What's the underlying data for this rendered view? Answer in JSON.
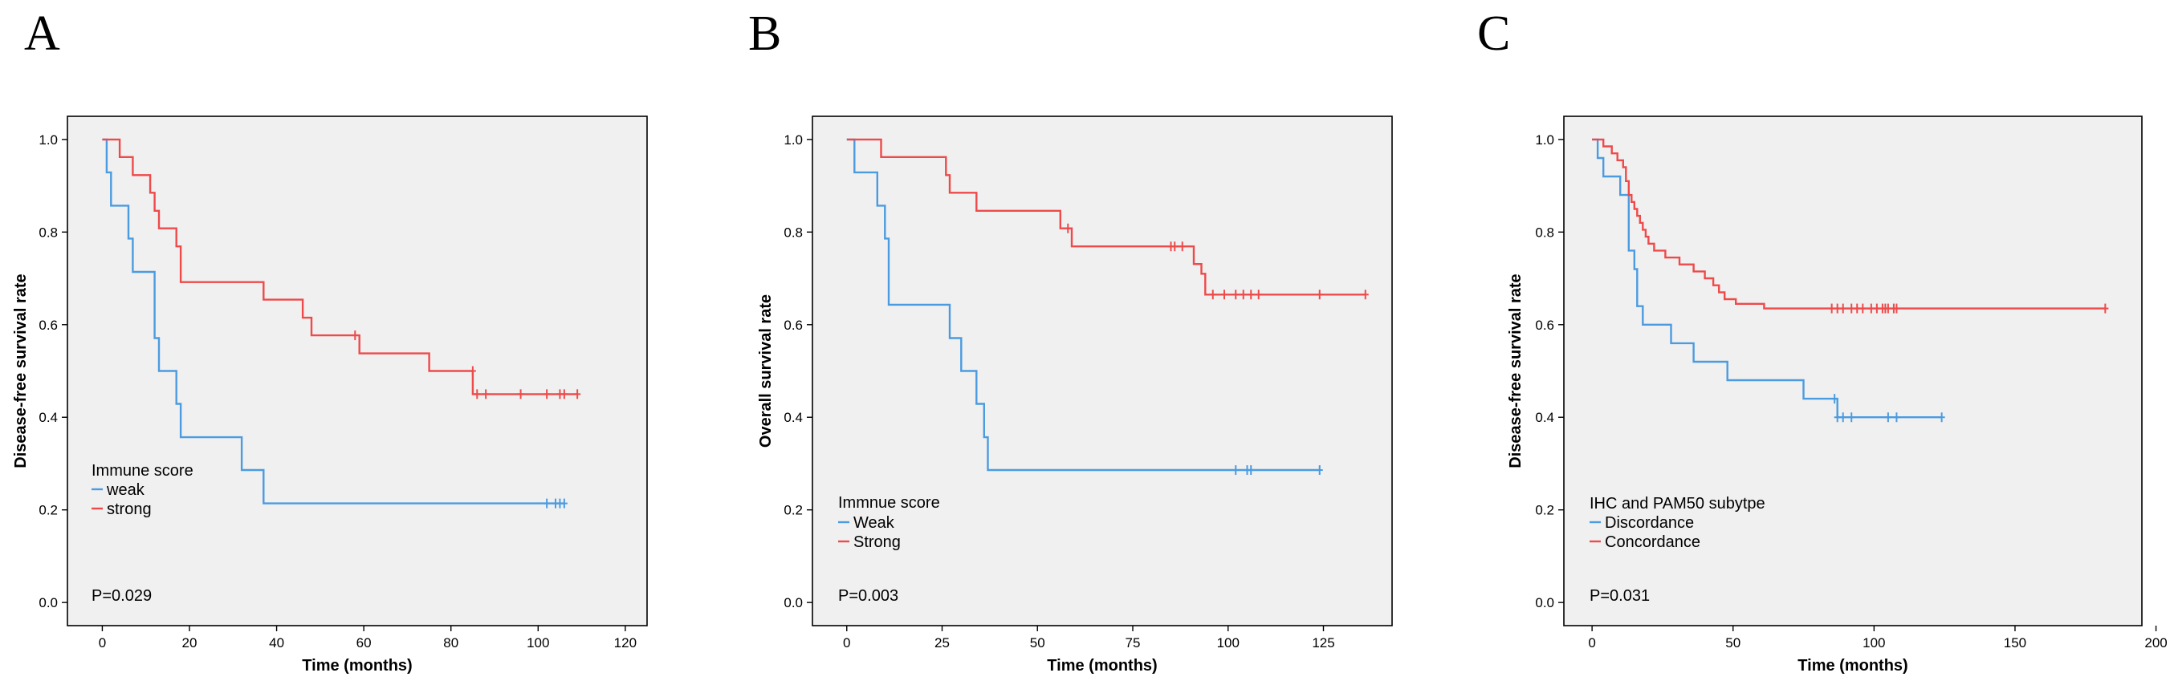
{
  "chart_data": [
    {
      "type": "line",
      "subtype": "kaplan-meier",
      "panel": "A",
      "xlabel": "Time (months)",
      "ylabel": "Disease-free survival rate",
      "xlim": [
        -8,
        125
      ],
      "ylim": [
        -0.05,
        1.05
      ],
      "xticks": [
        0,
        20,
        40,
        60,
        80,
        100,
        120
      ],
      "yticks": [
        0.0,
        0.2,
        0.4,
        0.6,
        0.8,
        1.0
      ],
      "legend_title": "Immune score",
      "p_value": "P=0.029",
      "series": [
        {
          "name": "weak",
          "color": "#4b9be0",
          "steps": [
            [
              0,
              1.0
            ],
            [
              1,
              0.929
            ],
            [
              2,
              0.857
            ],
            [
              6,
              0.786
            ],
            [
              7,
              0.714
            ],
            [
              12,
              0.571
            ],
            [
              13,
              0.5
            ],
            [
              17,
              0.429
            ],
            [
              18,
              0.357
            ],
            [
              32,
              0.286
            ],
            [
              37,
              0.214
            ],
            [
              106,
              0.214
            ]
          ],
          "censored": [
            [
              102,
              0.214
            ],
            [
              104,
              0.214
            ],
            [
              105,
              0.214
            ],
            [
              106,
              0.214
            ]
          ]
        },
        {
          "name": "strong",
          "color": "#ee4a4a",
          "steps": [
            [
              0,
              1.0
            ],
            [
              4,
              0.962
            ],
            [
              7,
              0.923
            ],
            [
              11,
              0.885
            ],
            [
              12,
              0.846
            ],
            [
              13,
              0.808
            ],
            [
              17,
              0.769
            ],
            [
              18,
              0.692
            ],
            [
              37,
              0.654
            ],
            [
              46,
              0.615
            ],
            [
              48,
              0.577
            ],
            [
              59,
              0.538
            ],
            [
              75,
              0.5
            ],
            [
              85,
              0.45
            ],
            [
              109,
              0.45
            ]
          ],
          "censored": [
            [
              58,
              0.577
            ],
            [
              85,
              0.5
            ],
            [
              86,
              0.45
            ],
            [
              88,
              0.45
            ],
            [
              96,
              0.45
            ],
            [
              102,
              0.45
            ],
            [
              105,
              0.45
            ],
            [
              106,
              0.45
            ],
            [
              109,
              0.45
            ]
          ]
        }
      ]
    },
    {
      "type": "line",
      "subtype": "kaplan-meier",
      "panel": "B",
      "xlabel": "Time (months)",
      "ylabel": "Overall survival rate",
      "xlim": [
        -9,
        143
      ],
      "ylim": [
        -0.05,
        1.05
      ],
      "xticks": [
        0,
        25,
        50,
        75,
        100,
        125
      ],
      "yticks": [
        0.0,
        0.2,
        0.4,
        0.6,
        0.8,
        1.0
      ],
      "legend_title": "Immnue score",
      "p_value": "P=0.003",
      "series": [
        {
          "name": "Weak",
          "color": "#4b9be0",
          "steps": [
            [
              0,
              1.0
            ],
            [
              2,
              0.929
            ],
            [
              8,
              0.857
            ],
            [
              10,
              0.786
            ],
            [
              11,
              0.643
            ],
            [
              27,
              0.571
            ],
            [
              30,
              0.5
            ],
            [
              34,
              0.429
            ],
            [
              36,
              0.357
            ],
            [
              37,
              0.286
            ],
            [
              124,
              0.286
            ]
          ],
          "censored": [
            [
              102,
              0.286
            ],
            [
              105,
              0.286
            ],
            [
              106,
              0.286
            ],
            [
              124,
              0.286
            ]
          ]
        },
        {
          "name": "Strong",
          "color": "#ee4a4a",
          "steps": [
            [
              0,
              1.0
            ],
            [
              9,
              0.962
            ],
            [
              26,
              0.923
            ],
            [
              27,
              0.885
            ],
            [
              34,
              0.846
            ],
            [
              56,
              0.808
            ],
            [
              59,
              0.769
            ],
            [
              91,
              0.731
            ],
            [
              93,
              0.71
            ],
            [
              94,
              0.665
            ],
            [
              136,
              0.665
            ]
          ],
          "censored": [
            [
              58,
              0.808
            ],
            [
              85,
              0.769
            ],
            [
              86,
              0.769
            ],
            [
              88,
              0.769
            ],
            [
              96,
              0.665
            ],
            [
              99,
              0.665
            ],
            [
              102,
              0.665
            ],
            [
              104,
              0.665
            ],
            [
              106,
              0.665
            ],
            [
              108,
              0.665
            ],
            [
              124,
              0.665
            ],
            [
              136,
              0.665
            ]
          ]
        }
      ]
    },
    {
      "type": "line",
      "subtype": "kaplan-meier",
      "panel": "C",
      "xlabel": "Time (months)",
      "ylabel": "Disease-free survival rate",
      "xlim": [
        -10,
        195
      ],
      "ylim": [
        -0.05,
        1.05
      ],
      "xticks": [
        0,
        50,
        100,
        150,
        200
      ],
      "yticks": [
        0.0,
        0.2,
        0.4,
        0.6,
        0.8,
        1.0
      ],
      "legend_title": "IHC and PAM50 subytpe",
      "p_value": "P=0.031",
      "series": [
        {
          "name": "Discordance",
          "color": "#4b9be0",
          "steps": [
            [
              0,
              1.0
            ],
            [
              2,
              0.96
            ],
            [
              4,
              0.92
            ],
            [
              10,
              0.88
            ],
            [
              13,
              0.76
            ],
            [
              15,
              0.72
            ],
            [
              16,
              0.64
            ],
            [
              18,
              0.6
            ],
            [
              28,
              0.56
            ],
            [
              36,
              0.52
            ],
            [
              48,
              0.48
            ],
            [
              75,
              0.44
            ],
            [
              87,
              0.4
            ],
            [
              124,
              0.4
            ]
          ],
          "censored": [
            [
              86,
              0.44
            ],
            [
              87,
              0.4
            ],
            [
              89,
              0.4
            ],
            [
              92,
              0.4
            ],
            [
              105,
              0.4
            ],
            [
              108,
              0.4
            ],
            [
              124,
              0.4
            ]
          ]
        },
        {
          "name": "Concordance",
          "color": "#ee4a4a",
          "steps": [
            [
              0,
              1.0
            ],
            [
              4,
              0.985
            ],
            [
              7,
              0.97
            ],
            [
              9,
              0.955
            ],
            [
              11,
              0.94
            ],
            [
              12,
              0.91
            ],
            [
              13,
              0.88
            ],
            [
              14,
              0.865
            ],
            [
              15,
              0.85
            ],
            [
              16,
              0.835
            ],
            [
              17,
              0.82
            ],
            [
              18,
              0.805
            ],
            [
              19,
              0.79
            ],
            [
              20,
              0.775
            ],
            [
              22,
              0.76
            ],
            [
              26,
              0.745
            ],
            [
              31,
              0.73
            ],
            [
              36,
              0.715
            ],
            [
              40,
              0.7
            ],
            [
              43,
              0.685
            ],
            [
              45,
              0.67
            ],
            [
              47,
              0.655
            ],
            [
              51,
              0.645
            ],
            [
              61,
              0.635
            ],
            [
              182,
              0.635
            ]
          ],
          "censored": [
            [
              85,
              0.635
            ],
            [
              87,
              0.635
            ],
            [
              89,
              0.635
            ],
            [
              92,
              0.635
            ],
            [
              94,
              0.635
            ],
            [
              96,
              0.635
            ],
            [
              99,
              0.635
            ],
            [
              101,
              0.635
            ],
            [
              103,
              0.635
            ],
            [
              104,
              0.635
            ],
            [
              105,
              0.635
            ],
            [
              107,
              0.635
            ],
            [
              108,
              0.635
            ],
            [
              182,
              0.635
            ]
          ]
        }
      ]
    }
  ]
}
